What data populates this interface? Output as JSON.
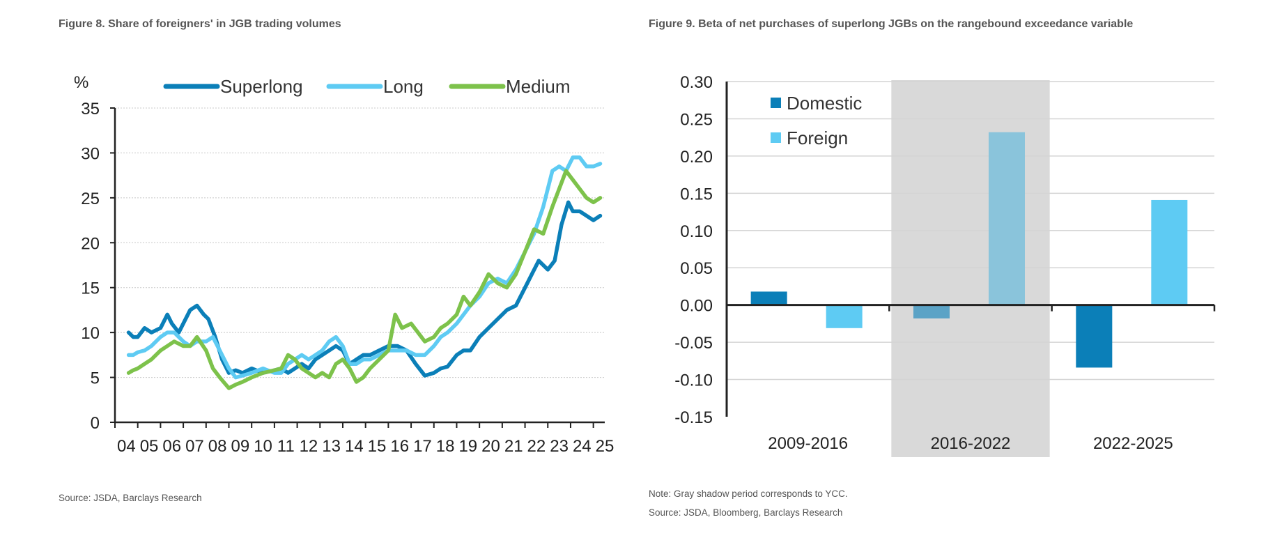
{
  "chart_data": [
    {
      "type": "line",
      "title": "Figure 8. Share of foreigners' in JGB trading volumes",
      "ylabel": "%",
      "xlabel": "",
      "source": "Source: JSDA, Barclays Research",
      "ylim": [
        0,
        35
      ],
      "yticks": [
        0,
        5,
        10,
        15,
        20,
        25,
        30,
        35
      ],
      "xlim": [
        2004.0,
        2025.5
      ],
      "xticks": [
        2004,
        2005,
        2006,
        2007,
        2008,
        2009,
        2010,
        2011,
        2012,
        2013,
        2014,
        2015,
        2016,
        2017,
        2018,
        2019,
        2020,
        2021,
        2022,
        2023,
        2024,
        2025
      ],
      "xtick_labels": [
        "04",
        "05",
        "06",
        "07",
        "08",
        "09",
        "10",
        "11",
        "12",
        "13",
        "14",
        "15",
        "16",
        "17",
        "18",
        "19",
        "20",
        "21",
        "22",
        "23",
        "24",
        "25"
      ],
      "legend_position": "top",
      "grid": true,
      "series": [
        {
          "name": "Superlong",
          "color": "#0b7fb8",
          "x": [
            2004.6,
            2004.8,
            2005.0,
            2005.3,
            2005.6,
            2006.0,
            2006.3,
            2006.5,
            2006.8,
            2007.0,
            2007.3,
            2007.6,
            2007.9,
            2008.1,
            2008.4,
            2008.7,
            2009.0,
            2009.3,
            2009.6,
            2010.0,
            2010.5,
            2011.0,
            2011.3,
            2011.6,
            2011.9,
            2012.2,
            2012.5,
            2012.8,
            2013.1,
            2013.4,
            2013.7,
            2014.0,
            2014.3,
            2014.6,
            2014.9,
            2015.2,
            2015.6,
            2016.0,
            2016.4,
            2016.8,
            2017.2,
            2017.6,
            2018.0,
            2018.3,
            2018.6,
            2019.0,
            2019.3,
            2019.6,
            2020.0,
            2020.4,
            2020.8,
            2021.2,
            2021.6,
            2022.0,
            2022.3,
            2022.6,
            2023.0,
            2023.3,
            2023.6,
            2023.9,
            2024.1,
            2024.4,
            2024.7,
            2025.0,
            2025.3
          ],
          "y": [
            10,
            9.5,
            9.5,
            10.5,
            10,
            10.5,
            12,
            11,
            10,
            11,
            12.5,
            13,
            12,
            11.5,
            9.5,
            7,
            5.5,
            5.8,
            5.5,
            6,
            5.5,
            5.8,
            6,
            5.5,
            6,
            6.5,
            6,
            7,
            7.5,
            8,
            8.5,
            8,
            6.5,
            7,
            7.5,
            7.5,
            8,
            8.5,
            8.5,
            8,
            6.5,
            5.2,
            5.5,
            6,
            6.2,
            7.5,
            8,
            8,
            9.5,
            10.5,
            11.5,
            12.5,
            13,
            15,
            16.5,
            18,
            17,
            18,
            22,
            24.5,
            23.5,
            23.5,
            23,
            22.5,
            23
          ]
        },
        {
          "name": "Long",
          "color": "#5ecbf3",
          "x": [
            2004.6,
            2004.8,
            2005.0,
            2005.3,
            2005.6,
            2006.0,
            2006.3,
            2006.6,
            2007.0,
            2007.3,
            2007.6,
            2008.0,
            2008.3,
            2008.6,
            2009.0,
            2009.3,
            2009.6,
            2010.0,
            2010.5,
            2011.0,
            2011.3,
            2011.6,
            2011.9,
            2012.2,
            2012.5,
            2012.8,
            2013.1,
            2013.4,
            2013.7,
            2014.0,
            2014.3,
            2014.6,
            2014.9,
            2015.2,
            2015.6,
            2016.0,
            2016.4,
            2016.8,
            2017.2,
            2017.6,
            2018.0,
            2018.3,
            2018.6,
            2019.0,
            2019.3,
            2019.6,
            2020.0,
            2020.4,
            2020.8,
            2021.2,
            2021.6,
            2022.0,
            2022.4,
            2022.8,
            2023.2,
            2023.5,
            2023.8,
            2024.1,
            2024.4,
            2024.7,
            2025.0,
            2025.3
          ],
          "y": [
            7.5,
            7.5,
            7.8,
            8,
            8.5,
            9.5,
            10,
            10,
            9,
            8.5,
            9,
            9,
            9.5,
            8,
            6,
            5,
            5.2,
            5.5,
            6,
            5.5,
            5.5,
            6.5,
            7,
            7.5,
            7,
            7.5,
            8,
            9,
            9.5,
            8.5,
            6.5,
            6.5,
            7,
            7,
            7.5,
            8,
            8,
            8,
            7.5,
            7.5,
            8.5,
            9.5,
            10,
            11,
            12,
            13,
            14,
            15.5,
            16,
            15.5,
            17,
            19,
            21,
            24,
            28,
            28.5,
            28,
            29.5,
            29.5,
            28.5,
            28.5,
            28.8
          ]
        },
        {
          "name": "Medium",
          "color": "#7dc24b",
          "x": [
            2004.6,
            2004.8,
            2005.0,
            2005.3,
            2005.6,
            2006.0,
            2006.3,
            2006.6,
            2007.0,
            2007.3,
            2007.6,
            2008.0,
            2008.3,
            2008.6,
            2009.0,
            2009.3,
            2009.6,
            2010.0,
            2010.5,
            2011.0,
            2011.3,
            2011.6,
            2011.9,
            2012.2,
            2012.5,
            2012.8,
            2013.1,
            2013.4,
            2013.7,
            2014.0,
            2014.3,
            2014.6,
            2014.9,
            2015.2,
            2015.6,
            2016.0,
            2016.3,
            2016.6,
            2017.0,
            2017.3,
            2017.6,
            2018.0,
            2018.3,
            2018.6,
            2019.0,
            2019.3,
            2019.6,
            2020.0,
            2020.4,
            2020.8,
            2021.2,
            2021.6,
            2022.0,
            2022.4,
            2022.8,
            2023.2,
            2023.5,
            2023.8,
            2024.1,
            2024.4,
            2024.7,
            2025.0,
            2025.3
          ],
          "y": [
            5.5,
            5.8,
            6,
            6.5,
            7,
            8,
            8.5,
            9,
            8.5,
            8.5,
            9.5,
            8,
            6,
            5,
            3.8,
            4.2,
            4.5,
            5,
            5.5,
            5.8,
            6,
            7.5,
            7,
            6,
            5.5,
            5,
            5.5,
            5,
            6.5,
            7,
            6,
            4.5,
            5,
            6,
            7,
            8,
            12,
            10.5,
            11,
            10,
            9,
            9.5,
            10.5,
            11,
            12,
            14,
            13,
            14.5,
            16.5,
            15.5,
            15,
            16.5,
            19,
            21.5,
            21,
            24,
            26,
            28,
            27,
            26,
            25,
            24.5,
            25
          ]
        }
      ]
    },
    {
      "type": "bar",
      "title": "Figure 9. Beta of net purchases of superlong JGBs on the rangebound exceedance variable",
      "ylabel": "",
      "xlabel": "",
      "notes": [
        "Note: Gray shadow period corresponds to YCC.",
        "Source: JSDA, Bloomberg, Barclays Research"
      ],
      "ylim": [
        -0.15,
        0.3
      ],
      "yticks": [
        -0.15,
        -0.1,
        -0.05,
        0.0,
        0.05,
        0.1,
        0.15,
        0.2,
        0.25,
        0.3
      ],
      "ytick_labels": [
        "-0.15",
        "-0.10",
        "-0.05",
        "0.00",
        "0.05",
        "0.10",
        "0.15",
        "0.20",
        "0.25",
        "0.30"
      ],
      "categories": [
        "2009-2016",
        "2016-2022",
        "2022-2025"
      ],
      "shaded_category": "2016-2022",
      "legend_position": "top-left",
      "grid": true,
      "series": [
        {
          "name": "Domestic",
          "color": "#0b7fb8",
          "values": [
            0.018,
            -0.018,
            -0.084
          ]
        },
        {
          "name": "Foreign",
          "color": "#5ecbf3",
          "values": [
            -0.031,
            0.232,
            0.141
          ]
        }
      ]
    }
  ]
}
